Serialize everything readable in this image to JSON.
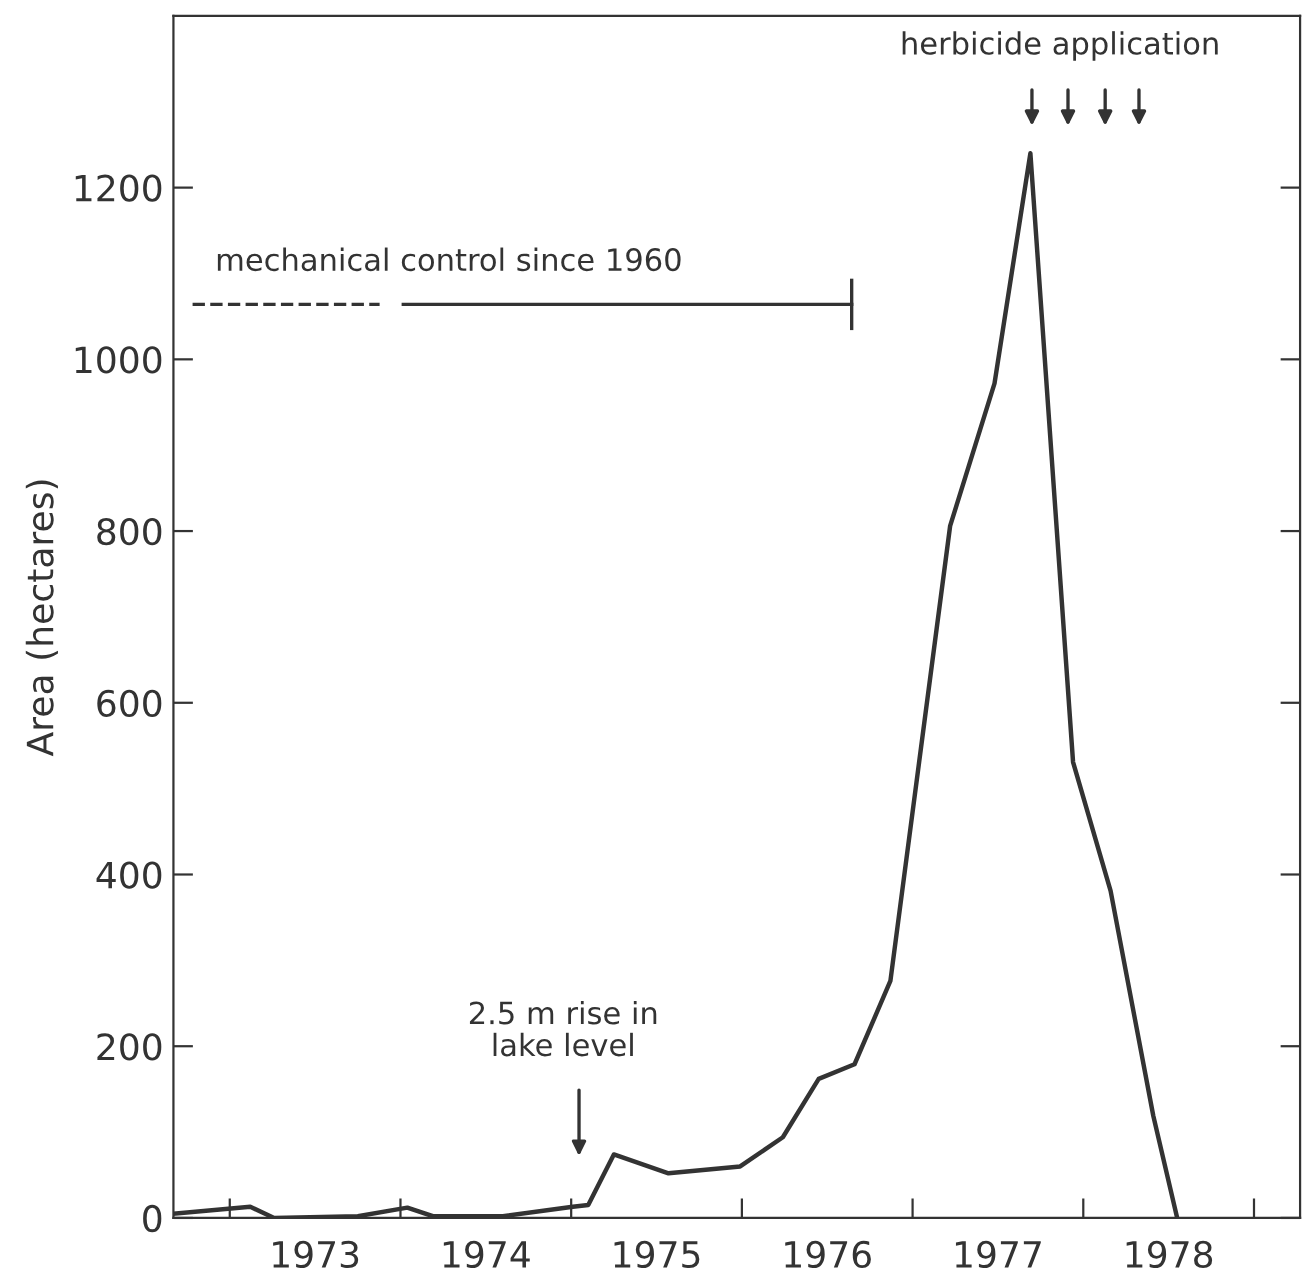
{
  "chart_data": {
    "type": "line",
    "ylabel": "Area (hectares)",
    "x": [
      1972.67,
      1973.12,
      1973.26,
      1973.75,
      1974.04,
      1974.19,
      1974.6,
      1975.01,
      1975.1,
      1975.25,
      1975.57,
      1975.99,
      1976.24,
      1976.45,
      1976.66,
      1976.87,
      1977.22,
      1977.48,
      1977.69,
      1977.94,
      1978.16,
      1978.41,
      1978.55
    ],
    "series": [
      {
        "color": "#333333",
        "values": [
          5,
          13,
          0,
          2,
          12,
          2,
          2,
          13,
          15,
          74,
          52,
          60,
          94,
          162,
          179,
          276,
          806,
          972,
          1240,
          531,
          381,
          119,
          0
        ]
      }
    ],
    "xlim": [
      1972.67,
      1979.27
    ],
    "ylim": [
      0,
      1400
    ],
    "xticks": [
      {
        "value": 1973,
        "label": null
      },
      {
        "value": 1973.5,
        "label": "1973"
      },
      {
        "value": 1974,
        "label": null
      },
      {
        "value": 1974.5,
        "label": "1974"
      },
      {
        "value": 1975,
        "label": null
      },
      {
        "value": 1975.5,
        "label": "1975"
      },
      {
        "value": 1976,
        "label": null
      },
      {
        "value": 1976.5,
        "label": "1976"
      },
      {
        "value": 1977,
        "label": null
      },
      {
        "value": 1977.5,
        "label": "1977"
      },
      {
        "value": 1978,
        "label": null
      },
      {
        "value": 1978.5,
        "label": "1978"
      },
      {
        "value": 1979,
        "label": null
      }
    ],
    "yticks": [
      0,
      200,
      400,
      600,
      800,
      1000,
      1200
    ],
    "annotations": [
      "mechanical control since 1960",
      "2.5 m rise in\nlake level",
      "herbicide application"
    ],
    "grid": false,
    "legend": false,
    "marker": "none",
    "line_style": "solid"
  }
}
